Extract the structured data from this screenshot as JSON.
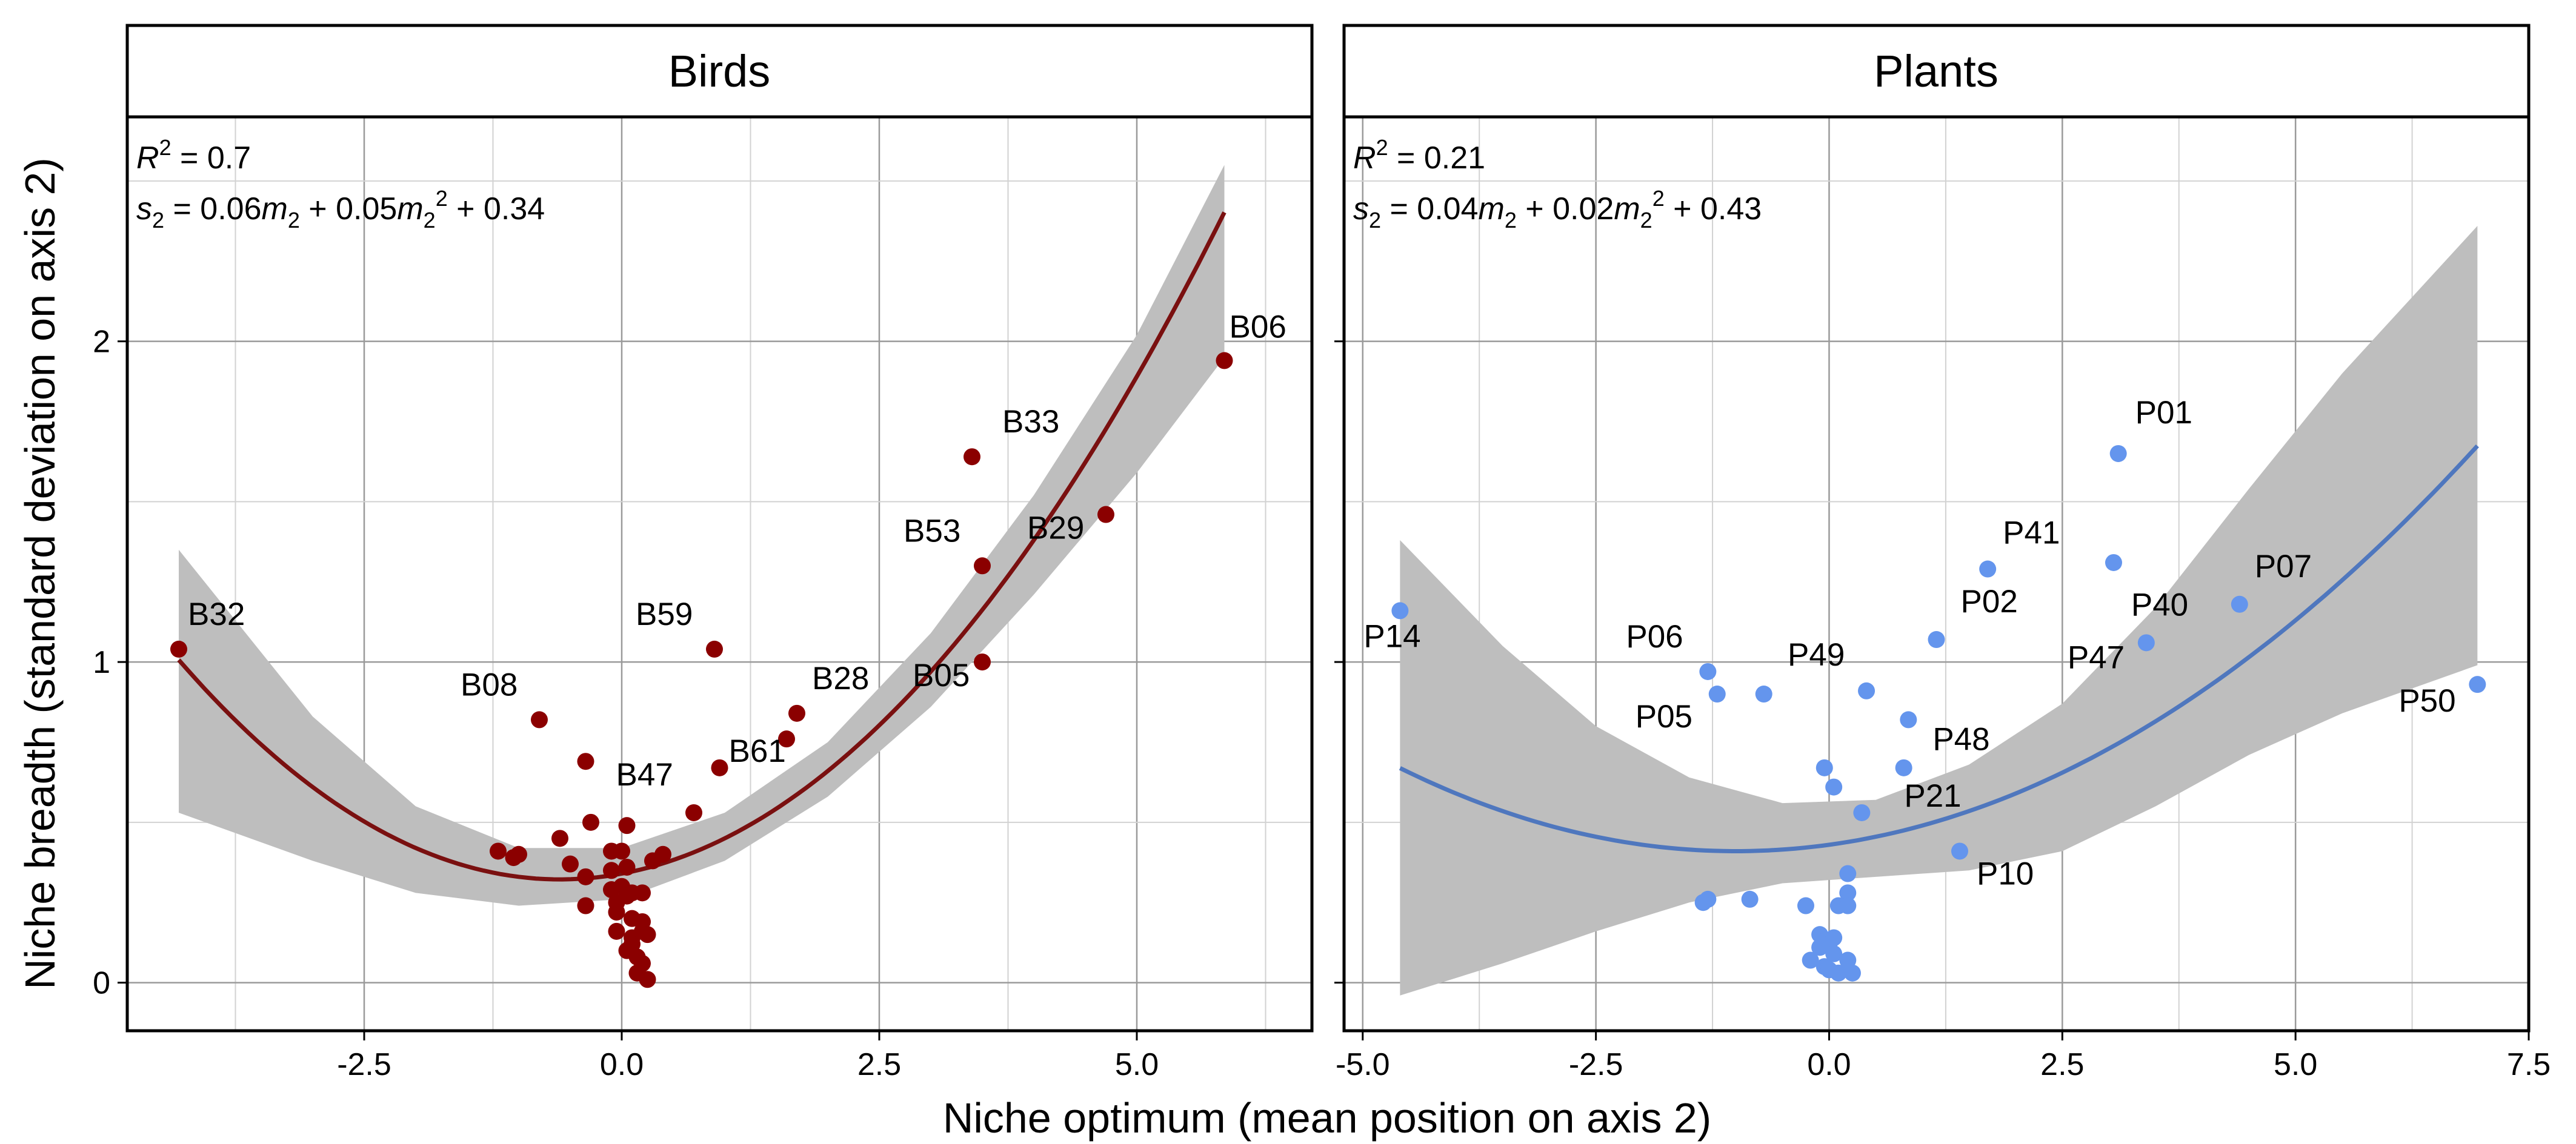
{
  "chart_data": {
    "type": "scatter",
    "xlabel": "Niche optimum (mean position on axis 2)",
    "ylabel": "Niche breadth (standard deviation on axis 2)",
    "grid": true,
    "panels": [
      {
        "title": "Birds",
        "xlim": [
          -4.8,
          6.7
        ],
        "ylim": [
          -0.15,
          2.7
        ],
        "x_ticks": [
          -2.5,
          0.0,
          2.5,
          5.0
        ],
        "x_tick_labels": [
          "-2.5",
          "0.0",
          "2.5",
          "5.0"
        ],
        "y_ticks": [
          0,
          1,
          2
        ],
        "y_tick_labels": [
          "0",
          "1",
          "2"
        ],
        "point_color": "#8B0000",
        "fit_color": "#7A1010",
        "band_color": "#BEBEBE",
        "r2_prefix": "R",
        "r2_sup": "2",
        "r2_value": " = 0.7",
        "equation_parts": [
          "s",
          "2",
          " = 0.06",
          "m",
          "2",
          " + 0.05",
          "m",
          "2",
          "2",
          " + 0.34"
        ],
        "fit": {
          "a": 0.05,
          "b": 0.06,
          "c": 0.34,
          "x_range": [
            -4.3,
            5.85
          ]
        },
        "band": {
          "upper": [
            [
              -4.3,
              1.35
            ],
            [
              -3.0,
              0.83
            ],
            [
              -2.0,
              0.55
            ],
            [
              -1.0,
              0.42
            ],
            [
              0.0,
              0.42
            ],
            [
              1.0,
              0.53
            ],
            [
              2.0,
              0.75
            ],
            [
              3.0,
              1.09
            ],
            [
              4.0,
              1.52
            ],
            [
              5.0,
              2.02
            ],
            [
              5.85,
              2.55
            ]
          ],
          "lower": [
            [
              -4.3,
              0.53
            ],
            [
              -3.0,
              0.38
            ],
            [
              -2.0,
              0.28
            ],
            [
              -1.0,
              0.24
            ],
            [
              0.0,
              0.26
            ],
            [
              1.0,
              0.38
            ],
            [
              2.0,
              0.58
            ],
            [
              3.0,
              0.86
            ],
            [
              4.0,
              1.21
            ],
            [
              5.0,
              1.59
            ],
            [
              5.85,
              1.95
            ]
          ]
        },
        "points": [
          [
            -4.3,
            1.04
          ],
          [
            5.85,
            1.94
          ],
          [
            3.4,
            1.64
          ],
          [
            3.5,
            1.3
          ],
          [
            4.7,
            1.46
          ],
          [
            3.5,
            1.0
          ],
          [
            0.9,
            1.04
          ],
          [
            1.7,
            0.84
          ],
          [
            1.6,
            0.76
          ],
          [
            -0.8,
            0.82
          ],
          [
            0.95,
            0.67
          ],
          [
            0.7,
            0.53
          ],
          [
            -0.35,
            0.69
          ],
          [
            -0.3,
            0.5
          ],
          [
            0.05,
            0.49
          ],
          [
            -1.2,
            0.41
          ],
          [
            -1.05,
            0.39
          ],
          [
            -1.0,
            0.4
          ],
          [
            -0.6,
            0.45
          ],
          [
            -0.5,
            0.37
          ],
          [
            -0.1,
            0.41
          ],
          [
            0.0,
            0.41
          ],
          [
            0.3,
            0.38
          ],
          [
            0.4,
            0.4
          ],
          [
            -0.35,
            0.33
          ],
          [
            -0.1,
            0.35
          ],
          [
            0.05,
            0.36
          ],
          [
            -0.1,
            0.29
          ],
          [
            0.0,
            0.3
          ],
          [
            0.1,
            0.28
          ],
          [
            0.2,
            0.28
          ],
          [
            -0.05,
            0.25
          ],
          [
            0.05,
            0.27
          ],
          [
            -0.35,
            0.24
          ],
          [
            -0.05,
            0.22
          ],
          [
            0.1,
            0.2
          ],
          [
            0.2,
            0.19
          ],
          [
            -0.05,
            0.16
          ],
          [
            0.1,
            0.14
          ],
          [
            0.2,
            0.16
          ],
          [
            0.25,
            0.15
          ],
          [
            0.05,
            0.1
          ],
          [
            0.15,
            0.08
          ],
          [
            0.2,
            0.06
          ],
          [
            0.15,
            0.03
          ],
          [
            0.25,
            0.01
          ],
          [
            0.1,
            0.12
          ]
        ],
        "labels": [
          {
            "text": "B32",
            "x": -4.3,
            "y": 1.04,
            "dx": 15,
            "dy": -40
          },
          {
            "text": "B06",
            "x": 5.85,
            "y": 1.94,
            "dx": 8,
            "dy": -38
          },
          {
            "text": "B33",
            "x": 3.4,
            "y": 1.64,
            "dx": 50,
            "dy": -40
          },
          {
            "text": "B53",
            "x": 3.5,
            "y": 1.3,
            "dx": -130,
            "dy": -40
          },
          {
            "text": "B29",
            "x": 4.7,
            "y": 1.46,
            "dx": -130,
            "dy": 40
          },
          {
            "text": "B59",
            "x": 0.9,
            "y": 1.04,
            "dx": -130,
            "dy": -40
          },
          {
            "text": "B28",
            "x": 1.7,
            "y": 0.84,
            "dx": 25,
            "dy": -40
          },
          {
            "text": "B08",
            "x": -0.8,
            "y": 0.82,
            "dx": -130,
            "dy": -40
          },
          {
            "text": "B61",
            "x": 0.95,
            "y": 0.67,
            "dx": 15,
            "dy": -10
          },
          {
            "text": "B47",
            "x": -0.35,
            "y": 0.69,
            "dx": 50,
            "dy": 40
          },
          {
            "text": "B05",
            "x": 3.5,
            "y": 1.0,
            "dx": -115,
            "dy": 40
          }
        ]
      },
      {
        "title": "Plants",
        "xlim": [
          -5.2,
          7.5
        ],
        "ylim": [
          -0.15,
          2.7
        ],
        "x_ticks": [
          -5.0,
          -2.5,
          0.0,
          2.5,
          5.0,
          7.5
        ],
        "x_tick_labels": [
          "-5.0",
          "-2.5",
          "0.0",
          "2.5",
          "5.0",
          "7.5"
        ],
        "y_ticks": [
          0,
          1,
          2
        ],
        "y_tick_labels": [
          "0",
          "1",
          "2"
        ],
        "point_color": "#6495ED",
        "fit_color": "#4F77BE",
        "band_color": "#BEBEBE",
        "r2_prefix": "R",
        "r2_sup": "2",
        "r2_value": " = 0.21",
        "equation_parts": [
          "s",
          "2",
          " = 0.04",
          "m",
          "2",
          " + 0.02",
          "m",
          "2",
          "2",
          " + 0.43"
        ],
        "fit": {
          "a": 0.02,
          "b": 0.04,
          "c": 0.43,
          "x_range": [
            -4.6,
            6.95
          ]
        },
        "band": {
          "upper": [
            [
              -4.6,
              1.38
            ],
            [
              -3.5,
              1.05
            ],
            [
              -2.5,
              0.8
            ],
            [
              -1.5,
              0.64
            ],
            [
              -0.5,
              0.56
            ],
            [
              0.5,
              0.57
            ],
            [
              1.5,
              0.68
            ],
            [
              2.5,
              0.87
            ],
            [
              3.5,
              1.17
            ],
            [
              4.5,
              1.54
            ],
            [
              5.5,
              1.9
            ],
            [
              6.95,
              2.36
            ]
          ],
          "lower": [
            [
              -4.6,
              -0.04
            ],
            [
              -3.5,
              0.06
            ],
            [
              -2.5,
              0.16
            ],
            [
              -1.5,
              0.25
            ],
            [
              -0.5,
              0.31
            ],
            [
              0.5,
              0.33
            ],
            [
              1.5,
              0.35
            ],
            [
              2.5,
              0.41
            ],
            [
              3.5,
              0.55
            ],
            [
              4.5,
              0.71
            ],
            [
              5.5,
              0.84
            ],
            [
              6.95,
              0.99
            ]
          ]
        },
        "points": [
          [
            -4.6,
            1.16
          ],
          [
            3.1,
            1.65
          ],
          [
            1.7,
            1.29
          ],
          [
            3.05,
            1.31
          ],
          [
            4.4,
            1.18
          ],
          [
            1.15,
            1.07
          ],
          [
            3.4,
            1.06
          ],
          [
            6.95,
            0.93
          ],
          [
            -1.3,
            0.97
          ],
          [
            -1.2,
            0.9
          ],
          [
            -0.7,
            0.9
          ],
          [
            0.4,
            0.91
          ],
          [
            0.85,
            0.82
          ],
          [
            0.8,
            0.67
          ],
          [
            -0.05,
            0.67
          ],
          [
            0.05,
            0.61
          ],
          [
            0.35,
            0.53
          ],
          [
            1.4,
            0.41
          ],
          [
            -1.35,
            0.25
          ],
          [
            -1.3,
            0.26
          ],
          [
            -0.85,
            0.26
          ],
          [
            -0.25,
            0.24
          ],
          [
            0.2,
            0.34
          ],
          [
            0.2,
            0.28
          ],
          [
            0.1,
            0.24
          ],
          [
            0.2,
            0.24
          ],
          [
            -0.1,
            0.15
          ],
          [
            -0.05,
            0.13
          ],
          [
            0.05,
            0.14
          ],
          [
            0.0,
            0.12
          ],
          [
            -0.1,
            0.11
          ],
          [
            0.05,
            0.09
          ],
          [
            -0.2,
            0.07
          ],
          [
            -0.05,
            0.05
          ],
          [
            0.1,
            0.03
          ],
          [
            0.2,
            0.07
          ],
          [
            0.25,
            0.03
          ],
          [
            0.0,
            0.04
          ]
        ],
        "labels": [
          {
            "text": "P01",
            "x": 3.1,
            "y": 1.65,
            "dx": 28,
            "dy": -50
          },
          {
            "text": "P14",
            "x": -4.6,
            "y": 1.16,
            "dx": -60,
            "dy": 60
          },
          {
            "text": "P41",
            "x": 1.7,
            "y": 1.29,
            "dx": 25,
            "dy": -42
          },
          {
            "text": "P02",
            "x": 1.15,
            "y": 1.07,
            "dx": 40,
            "dy": -45
          },
          {
            "text": "P40",
            "x": 3.4,
            "y": 1.06,
            "dx": -25,
            "dy": -45
          },
          {
            "text": "P07",
            "x": 4.4,
            "y": 1.18,
            "dx": 25,
            "dy": -45
          },
          {
            "text": "P47",
            "x": 3.4,
            "y": 1.06,
            "dx": -130,
            "dy": 42
          },
          {
            "text": "P50",
            "x": 6.95,
            "y": 0.93,
            "dx": -130,
            "dy": 45
          },
          {
            "text": "P06",
            "x": -1.3,
            "y": 0.97,
            "dx": -135,
            "dy": -40
          },
          {
            "text": "P49",
            "x": 0.4,
            "y": 0.91,
            "dx": -130,
            "dy": -42
          },
          {
            "text": "P05",
            "x": -1.2,
            "y": 0.9,
            "dx": -135,
            "dy": 55
          },
          {
            "text": "P48",
            "x": 0.85,
            "y": 0.82,
            "dx": 40,
            "dy": 50
          },
          {
            "text": "P21",
            "x": 0.35,
            "y": 0.53,
            "dx": 70,
            "dy": -10
          },
          {
            "text": "P10",
            "x": 1.4,
            "y": 0.41,
            "dx": 28,
            "dy": 55
          }
        ]
      }
    ]
  }
}
